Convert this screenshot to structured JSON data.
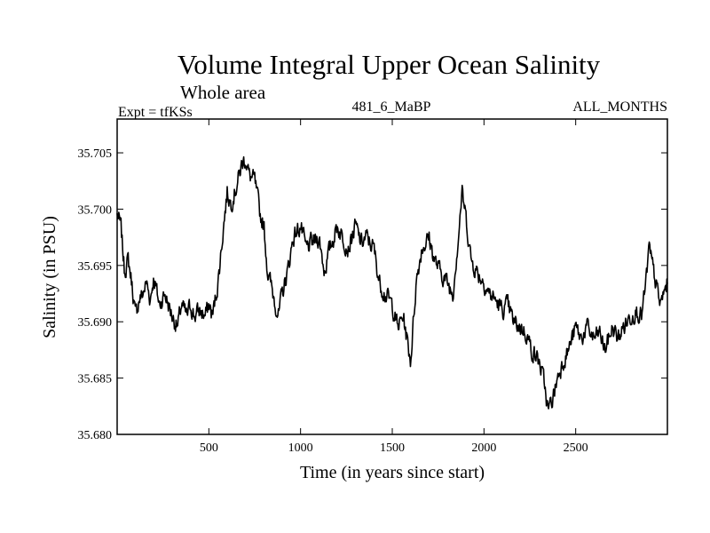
{
  "chart_data": {
    "type": "line",
    "title": "Volume Integral Upper Ocean Salinity",
    "subtitle": "Whole area",
    "experiment_label": "Expt = tfKSs",
    "run_label": "481_6_MaBP",
    "months_label": "ALL_MONTHS",
    "xlabel": "Time (in years since start)",
    "ylabel": "Salinity (in PSU)",
    "xlim": [
      0,
      3000
    ],
    "ylim": [
      35.68,
      35.708
    ],
    "x_ticks": [
      500,
      1000,
      1500,
      2000,
      2500
    ],
    "x_tick_labels": [
      "500",
      "1000",
      "1500",
      "2000",
      "2500"
    ],
    "y_ticks": [
      35.68,
      35.685,
      35.69,
      35.695,
      35.7,
      35.705
    ],
    "y_tick_labels": [
      "35.680",
      "35.685",
      "35.690",
      "35.695",
      "35.700",
      "35.705"
    ],
    "grid": false,
    "series": [
      {
        "name": "Salinity",
        "color": "#000000",
        "x": [
          0,
          20,
          40,
          60,
          80,
          100,
          120,
          140,
          160,
          180,
          200,
          230,
          260,
          300,
          330,
          350,
          380,
          400,
          420,
          450,
          480,
          500,
          520,
          550,
          580,
          600,
          620,
          650,
          680,
          700,
          720,
          750,
          780,
          800,
          820,
          850,
          880,
          900,
          930,
          960,
          1000,
          1030,
          1060,
          1100,
          1130,
          1160,
          1200,
          1230,
          1260,
          1300,
          1330,
          1360,
          1400,
          1430,
          1460,
          1500,
          1530,
          1560,
          1600,
          1630,
          1660,
          1700,
          1730,
          1760,
          1800,
          1830,
          1860,
          1880,
          1900,
          1930,
          1960,
          2000,
          2030,
          2060,
          2100,
          2130,
          2160,
          2200,
          2230,
          2260,
          2300,
          2330,
          2350,
          2380,
          2400,
          2430,
          2460,
          2500,
          2530,
          2560,
          2600,
          2630,
          2660,
          2700,
          2730,
          2760,
          2800,
          2830,
          2860,
          2880,
          2900,
          2930,
          2960,
          3000
        ],
        "values": [
          35.6995,
          35.6985,
          35.6945,
          35.6955,
          35.6935,
          35.6905,
          35.692,
          35.6925,
          35.6935,
          35.692,
          35.694,
          35.6915,
          35.6925,
          35.6905,
          35.6895,
          35.6915,
          35.6905,
          35.6915,
          35.6905,
          35.691,
          35.6905,
          35.6915,
          35.6905,
          35.6935,
          35.6985,
          35.7015,
          35.7005,
          35.702,
          35.704,
          35.7045,
          35.703,
          35.7025,
          35.6995,
          35.6985,
          35.6945,
          35.6925,
          35.6905,
          35.6925,
          35.6945,
          35.6975,
          35.6985,
          35.6965,
          35.697,
          35.6975,
          35.6945,
          35.6965,
          35.6985,
          35.6975,
          35.6965,
          35.6985,
          35.697,
          35.6975,
          35.6965,
          35.6935,
          35.6925,
          35.6915,
          35.6895,
          35.6905,
          35.6865,
          35.6935,
          35.6965,
          35.6975,
          35.6955,
          35.6945,
          35.6935,
          35.6925,
          35.6975,
          35.7015,
          35.6995,
          35.6955,
          35.6945,
          35.6935,
          35.6925,
          35.692,
          35.691,
          35.6915,
          35.69,
          35.6895,
          35.689,
          35.6875,
          35.6865,
          35.6845,
          35.682,
          35.6835,
          35.685,
          35.6865,
          35.6875,
          35.6895,
          35.6885,
          35.6895,
          35.6885,
          35.689,
          35.6875,
          35.6895,
          35.6885,
          35.6895,
          35.6905,
          35.691,
          35.6905,
          35.693,
          35.6965,
          35.694,
          35.6915,
          35.6935
        ]
      }
    ]
  }
}
